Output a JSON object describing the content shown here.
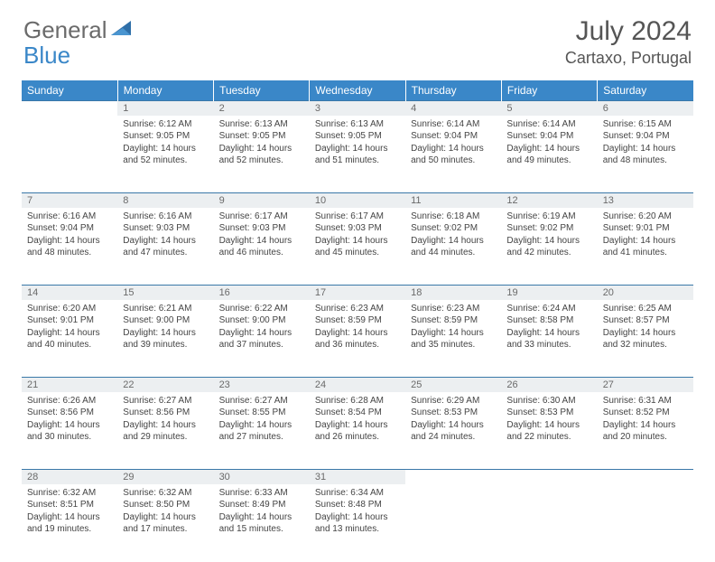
{
  "logo": {
    "general": "General",
    "blue": "Blue"
  },
  "title": "July 2024",
  "location": "Cartaxo, Portugal",
  "colors": {
    "header_bg": "#3a87c8",
    "header_text": "#ffffff",
    "daynum_bg": "#eceff1",
    "daynum_text": "#6a6a6a",
    "border": "#3a78a8",
    "body_text": "#444444",
    "logo_gray": "#6b6b6b",
    "logo_blue": "#3a87c8"
  },
  "weekdays": [
    "Sunday",
    "Monday",
    "Tuesday",
    "Wednesday",
    "Thursday",
    "Friday",
    "Saturday"
  ],
  "weeks": [
    {
      "days": [
        null,
        {
          "n": "1",
          "sr": "6:12 AM",
          "ss": "9:05 PM",
          "dl": "14 hours and 52 minutes."
        },
        {
          "n": "2",
          "sr": "6:13 AM",
          "ss": "9:05 PM",
          "dl": "14 hours and 52 minutes."
        },
        {
          "n": "3",
          "sr": "6:13 AM",
          "ss": "9:05 PM",
          "dl": "14 hours and 51 minutes."
        },
        {
          "n": "4",
          "sr": "6:14 AM",
          "ss": "9:04 PM",
          "dl": "14 hours and 50 minutes."
        },
        {
          "n": "5",
          "sr": "6:14 AM",
          "ss": "9:04 PM",
          "dl": "14 hours and 49 minutes."
        },
        {
          "n": "6",
          "sr": "6:15 AM",
          "ss": "9:04 PM",
          "dl": "14 hours and 48 minutes."
        }
      ]
    },
    {
      "days": [
        {
          "n": "7",
          "sr": "6:16 AM",
          "ss": "9:04 PM",
          "dl": "14 hours and 48 minutes."
        },
        {
          "n": "8",
          "sr": "6:16 AM",
          "ss": "9:03 PM",
          "dl": "14 hours and 47 minutes."
        },
        {
          "n": "9",
          "sr": "6:17 AM",
          "ss": "9:03 PM",
          "dl": "14 hours and 46 minutes."
        },
        {
          "n": "10",
          "sr": "6:17 AM",
          "ss": "9:03 PM",
          "dl": "14 hours and 45 minutes."
        },
        {
          "n": "11",
          "sr": "6:18 AM",
          "ss": "9:02 PM",
          "dl": "14 hours and 44 minutes."
        },
        {
          "n": "12",
          "sr": "6:19 AM",
          "ss": "9:02 PM",
          "dl": "14 hours and 42 minutes."
        },
        {
          "n": "13",
          "sr": "6:20 AM",
          "ss": "9:01 PM",
          "dl": "14 hours and 41 minutes."
        }
      ]
    },
    {
      "days": [
        {
          "n": "14",
          "sr": "6:20 AM",
          "ss": "9:01 PM",
          "dl": "14 hours and 40 minutes."
        },
        {
          "n": "15",
          "sr": "6:21 AM",
          "ss": "9:00 PM",
          "dl": "14 hours and 39 minutes."
        },
        {
          "n": "16",
          "sr": "6:22 AM",
          "ss": "9:00 PM",
          "dl": "14 hours and 37 minutes."
        },
        {
          "n": "17",
          "sr": "6:23 AM",
          "ss": "8:59 PM",
          "dl": "14 hours and 36 minutes."
        },
        {
          "n": "18",
          "sr": "6:23 AM",
          "ss": "8:59 PM",
          "dl": "14 hours and 35 minutes."
        },
        {
          "n": "19",
          "sr": "6:24 AM",
          "ss": "8:58 PM",
          "dl": "14 hours and 33 minutes."
        },
        {
          "n": "20",
          "sr": "6:25 AM",
          "ss": "8:57 PM",
          "dl": "14 hours and 32 minutes."
        }
      ]
    },
    {
      "days": [
        {
          "n": "21",
          "sr": "6:26 AM",
          "ss": "8:56 PM",
          "dl": "14 hours and 30 minutes."
        },
        {
          "n": "22",
          "sr": "6:27 AM",
          "ss": "8:56 PM",
          "dl": "14 hours and 29 minutes."
        },
        {
          "n": "23",
          "sr": "6:27 AM",
          "ss": "8:55 PM",
          "dl": "14 hours and 27 minutes."
        },
        {
          "n": "24",
          "sr": "6:28 AM",
          "ss": "8:54 PM",
          "dl": "14 hours and 26 minutes."
        },
        {
          "n": "25",
          "sr": "6:29 AM",
          "ss": "8:53 PM",
          "dl": "14 hours and 24 minutes."
        },
        {
          "n": "26",
          "sr": "6:30 AM",
          "ss": "8:53 PM",
          "dl": "14 hours and 22 minutes."
        },
        {
          "n": "27",
          "sr": "6:31 AM",
          "ss": "8:52 PM",
          "dl": "14 hours and 20 minutes."
        }
      ]
    },
    {
      "days": [
        {
          "n": "28",
          "sr": "6:32 AM",
          "ss": "8:51 PM",
          "dl": "14 hours and 19 minutes."
        },
        {
          "n": "29",
          "sr": "6:32 AM",
          "ss": "8:50 PM",
          "dl": "14 hours and 17 minutes."
        },
        {
          "n": "30",
          "sr": "6:33 AM",
          "ss": "8:49 PM",
          "dl": "14 hours and 15 minutes."
        },
        {
          "n": "31",
          "sr": "6:34 AM",
          "ss": "8:48 PM",
          "dl": "14 hours and 13 minutes."
        },
        null,
        null,
        null
      ]
    }
  ],
  "labels": {
    "sunrise": "Sunrise:",
    "sunset": "Sunset:",
    "daylight": "Daylight:"
  }
}
